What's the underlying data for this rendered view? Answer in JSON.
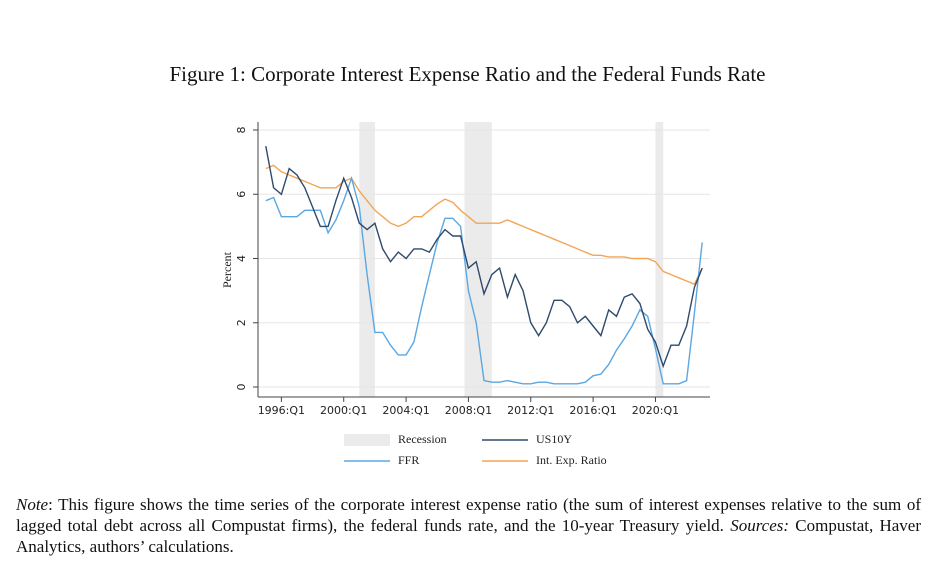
{
  "figure_title": "Figure 1: Corporate Interest Expense Ratio and the Federal Funds Rate",
  "chart_data": {
    "type": "line",
    "ylabel": "Percent",
    "x": [
      "1995:Q1",
      "1995:Q3",
      "1996:Q1",
      "1996:Q3",
      "1997:Q1",
      "1997:Q3",
      "1998:Q1",
      "1998:Q3",
      "1999:Q1",
      "1999:Q3",
      "2000:Q1",
      "2000:Q3",
      "2001:Q1",
      "2001:Q3",
      "2002:Q1",
      "2002:Q3",
      "2003:Q1",
      "2003:Q3",
      "2004:Q1",
      "2004:Q3",
      "2005:Q1",
      "2005:Q3",
      "2006:Q1",
      "2006:Q3",
      "2007:Q1",
      "2007:Q3",
      "2008:Q1",
      "2008:Q3",
      "2009:Q1",
      "2009:Q3",
      "2010:Q1",
      "2010:Q3",
      "2011:Q1",
      "2011:Q3",
      "2012:Q1",
      "2012:Q3",
      "2013:Q1",
      "2013:Q3",
      "2014:Q1",
      "2014:Q3",
      "2015:Q1",
      "2015:Q3",
      "2016:Q1",
      "2016:Q3",
      "2017:Q1",
      "2017:Q3",
      "2018:Q1",
      "2018:Q3",
      "2019:Q1",
      "2019:Q3",
      "2020:Q1",
      "2020:Q3",
      "2021:Q1",
      "2021:Q3",
      "2022:Q1",
      "2022:Q3",
      "2023:Q1"
    ],
    "series": [
      {
        "name": "US10Y",
        "color": "#2f4a6b",
        "values": [
          7.5,
          6.2,
          6.0,
          6.8,
          6.6,
          6.2,
          5.6,
          5.0,
          5.0,
          5.8,
          6.5,
          5.9,
          5.1,
          4.9,
          5.1,
          4.3,
          3.9,
          4.2,
          4.0,
          4.3,
          4.3,
          4.2,
          4.6,
          4.9,
          4.7,
          4.7,
          3.7,
          3.9,
          2.9,
          3.5,
          3.7,
          2.8,
          3.5,
          3.0,
          2.0,
          1.6,
          2.0,
          2.7,
          2.7,
          2.5,
          2.0,
          2.2,
          1.9,
          1.6,
          2.4,
          2.2,
          2.8,
          2.9,
          2.6,
          1.8,
          1.4,
          0.65,
          1.3,
          1.3,
          1.9,
          3.1,
          3.7
        ]
      },
      {
        "name": "FFR",
        "color": "#5ba7e2",
        "values": [
          5.8,
          5.9,
          5.3,
          5.3,
          5.3,
          5.5,
          5.5,
          5.5,
          4.8,
          5.2,
          5.8,
          6.5,
          5.6,
          3.5,
          1.7,
          1.7,
          1.3,
          1.0,
          1.0,
          1.4,
          2.5,
          3.5,
          4.5,
          5.25,
          5.25,
          5.0,
          3.0,
          2.0,
          0.2,
          0.15,
          0.15,
          0.2,
          0.15,
          0.1,
          0.1,
          0.15,
          0.15,
          0.1,
          0.1,
          0.1,
          0.1,
          0.15,
          0.35,
          0.4,
          0.7,
          1.15,
          1.5,
          1.9,
          2.4,
          2.2,
          1.2,
          0.1,
          0.1,
          0.1,
          0.2,
          2.3,
          4.5
        ]
      },
      {
        "name": "Int. Exp. Ratio",
        "color": "#f2a557",
        "values": [
          6.8,
          6.9,
          6.7,
          6.6,
          6.5,
          6.4,
          6.3,
          6.2,
          6.2,
          6.2,
          6.4,
          6.5,
          6.1,
          5.8,
          5.5,
          5.3,
          5.1,
          5.0,
          5.1,
          5.3,
          5.3,
          5.5,
          5.7,
          5.85,
          5.75,
          5.5,
          5.3,
          5.1,
          5.1,
          5.1,
          5.1,
          5.2,
          5.1,
          5.0,
          4.9,
          4.8,
          4.7,
          4.6,
          4.5,
          4.4,
          4.3,
          4.2,
          4.1,
          4.1,
          4.05,
          4.05,
          4.05,
          4.0,
          4.0,
          4.0,
          3.9,
          3.6,
          3.5,
          3.4,
          3.3,
          3.2,
          3.7
        ]
      }
    ],
    "recession": {
      "name": "Recession",
      "color": "#ebebeb",
      "periods": [
        [
          "2001:Q1",
          "2001:Q4"
        ],
        [
          "2007:Q4",
          "2009:Q2"
        ],
        [
          "2020:Q1",
          "2020:Q2"
        ]
      ]
    },
    "xlim": [
      "1994:Q3",
      "2023:Q3"
    ],
    "xticks": [
      "1996:Q1",
      "2000:Q1",
      "2004:Q1",
      "2008:Q1",
      "2012:Q1",
      "2016:Q1",
      "2020:Q1"
    ],
    "ylim": [
      0,
      8
    ],
    "yticks": [
      0,
      2,
      4,
      6,
      8
    ],
    "grid": true
  },
  "note": [
    {
      "text": "Note",
      "italic": true
    },
    {
      "text": ": This figure shows the time series of the corporate interest expense ratio (the sum of interest expenses relative to the sum of lagged total debt across all Compustat firms), the federal funds rate, and the 10-year Treasury yield. ",
      "italic": false
    },
    {
      "text": "Sources:",
      "italic": true
    },
    {
      "text": " Compustat, Haver Analytics, authors’ calculations.",
      "italic": false
    }
  ]
}
